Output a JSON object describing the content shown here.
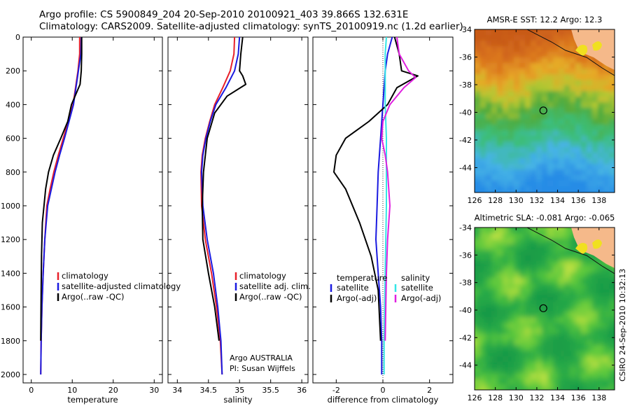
{
  "header": {
    "line1": "Argo profile: CS 5900849_204 20-Sep-2010 20100921_403 39.866S 132.631E",
    "line2": "Climatology: CARS2009. Satellite-adjusted climatology: synTS_20100919.nc (1.2d earlier)"
  },
  "footer_text": "CSIRO 24-Sep-2010 10:32:13",
  "colors": {
    "red": "#e8202a",
    "blue": "#1a1ae0",
    "black": "#000000",
    "cyan": "#33e6e6",
    "magenta": "#e020e0"
  },
  "chart_data": [
    {
      "type": "line",
      "panel": "temperature",
      "xlabel": "temperature",
      "ylabel": "",
      "xlim": [
        -2,
        32
      ],
      "ylim": [
        2050,
        0
      ],
      "xticks": [
        0,
        10,
        20,
        30
      ],
      "yticks": [
        0,
        200,
        400,
        600,
        800,
        1000,
        1200,
        1400,
        1600,
        1800,
        2000
      ],
      "legend": {
        "placement": "lower-right",
        "entries": [
          {
            "label": "climatology",
            "color": "#e8202a"
          },
          {
            "label": "satellite-adjusted climatology",
            "color": "#1a1ae0"
          },
          {
            "label": "Argo(..raw -QC)",
            "color": "#000000"
          }
        ]
      },
      "series": [
        {
          "name": "climatology",
          "color": "#e8202a",
          "x": [
            11.8,
            11.8,
            11.4,
            10.2,
            9.0,
            7.8,
            6.6,
            5.5,
            4.6,
            3.8,
            3.3,
            2.9,
            2.6,
            2.4,
            2.3
          ],
          "y": [
            0,
            100,
            200,
            400,
            500,
            600,
            700,
            800,
            900,
            1000,
            1200,
            1400,
            1600,
            1800,
            2000
          ]
        },
        {
          "name": "satellite-adjusted climatology",
          "color": "#1a1ae0",
          "x": [
            12.2,
            12.1,
            11.5,
            10.3,
            9.2,
            8.1,
            6.9,
            5.8,
            4.9,
            4.0,
            3.3,
            2.9,
            2.6,
            2.4,
            2.3
          ],
          "y": [
            0,
            100,
            200,
            400,
            500,
            600,
            700,
            800,
            900,
            1000,
            1200,
            1400,
            1600,
            1800,
            2000
          ]
        },
        {
          "name": "Argo(..raw -QC)",
          "color": "#000000",
          "x": [
            12.3,
            12.3,
            12.2,
            11.9,
            9.8,
            8.9,
            7.2,
            5.4,
            4.2,
            3.5,
            2.7,
            2.5,
            2.4,
            2.3
          ],
          "y": [
            0,
            100,
            200,
            280,
            400,
            500,
            600,
            700,
            800,
            900,
            1100,
            1300,
            1500,
            1800
          ]
        }
      ]
    },
    {
      "type": "line",
      "panel": "salinity",
      "xlabel": "salinity",
      "ylabel": "",
      "xlim": [
        33.85,
        36.1
      ],
      "ylim": [
        2050,
        0
      ],
      "xticks": [
        34,
        34.5,
        35,
        35.5,
        36
      ],
      "yticks": [
        0,
        200,
        400,
        600,
        800,
        1000,
        1200,
        1400,
        1600,
        1800,
        2000
      ],
      "legend": {
        "placement": "lower-right",
        "entries": [
          {
            "label": "climatology",
            "color": "#e8202a"
          },
          {
            "label": "satellite adj. clim.",
            "color": "#1a1ae0"
          },
          {
            "label": "Argo(..raw -QC)",
            "color": "#000000"
          }
        ]
      },
      "annotation": [
        "Argo AUSTRALIA",
        "PI: Susan Wijffels"
      ],
      "series": [
        {
          "name": "climatology",
          "color": "#e8202a",
          "x": [
            34.92,
            34.91,
            34.85,
            34.73,
            34.6,
            34.52,
            34.45,
            34.4,
            34.38,
            34.39,
            34.45,
            34.55,
            34.63,
            34.69,
            34.72
          ],
          "y": [
            0,
            100,
            200,
            300,
            400,
            500,
            600,
            700,
            800,
            1000,
            1200,
            1400,
            1600,
            1800,
            2000
          ]
        },
        {
          "name": "satellite adj. clim.",
          "color": "#1a1ae0",
          "x": [
            35.0,
            34.98,
            34.92,
            34.78,
            34.62,
            34.53,
            34.46,
            34.41,
            34.39,
            34.41,
            34.48,
            34.58,
            34.65,
            34.7,
            34.72
          ],
          "y": [
            0,
            100,
            200,
            300,
            400,
            500,
            600,
            700,
            800,
            1000,
            1200,
            1400,
            1600,
            1800,
            2000
          ]
        },
        {
          "name": "Argo(..raw -QC)",
          "color": "#000000",
          "x": [
            35.05,
            35.02,
            35.0,
            35.05,
            35.1,
            34.8,
            34.6,
            34.48,
            34.42,
            34.4,
            34.41,
            34.5,
            34.6,
            34.67
          ],
          "y": [
            0,
            100,
            200,
            230,
            280,
            350,
            450,
            600,
            800,
            1000,
            1200,
            1400,
            1600,
            1800
          ]
        }
      ]
    },
    {
      "type": "line",
      "panel": "difference",
      "xlabel": "difference from climatology",
      "ylabel": "",
      "xlim": [
        -3.0,
        3.0
      ],
      "ylim": [
        2050,
        0
      ],
      "xticks": [
        -2,
        0,
        2
      ],
      "yticks": [
        0,
        200,
        400,
        600,
        800,
        1000,
        1200,
        1400,
        1600,
        1800,
        2000
      ],
      "legend": {
        "placement": "lower-right",
        "columns": [
          {
            "heading": "temperature",
            "entries": [
              {
                "label": "satellite",
                "color": "#1a1ae0"
              },
              {
                "label": "Argo(-adj)",
                "color": "#000000"
              }
            ]
          },
          {
            "heading": "salinity",
            "entries": [
              {
                "label": "satellite",
                "color": "#33e6e6"
              },
              {
                "label": "Argo(-adj)",
                "color": "#e020e0"
              }
            ]
          }
        ]
      },
      "series": [
        {
          "name": "temperature satellite",
          "color": "#1a1ae0",
          "x": [
            0.4,
            0.2,
            0.1,
            0.0,
            -0.1,
            -0.2,
            -0.25,
            -0.3,
            -0.2,
            -0.1,
            -0.05,
            -0.05
          ],
          "y": [
            0,
            100,
            200,
            400,
            600,
            800,
            1000,
            1200,
            1400,
            1600,
            1800,
            2000
          ]
        },
        {
          "name": "temperature Argo(-adj)",
          "color": "#000000",
          "x": [
            0.5,
            0.7,
            0.8,
            1.5,
            0.6,
            0.2,
            -0.6,
            -1.6,
            -2.0,
            -2.1,
            -1.6,
            -1.0,
            -0.5,
            -0.2,
            -0.1
          ],
          "y": [
            0,
            100,
            200,
            230,
            300,
            400,
            500,
            600,
            700,
            800,
            900,
            1100,
            1300,
            1500,
            1800
          ]
        },
        {
          "name": "salinity satellite",
          "color": "#33e6e6",
          "x": [
            0.15,
            0.1,
            0.1,
            0.1,
            0.15,
            0.15,
            0.15,
            0.1,
            0.05,
            0.05
          ],
          "y": [
            0,
            100,
            200,
            400,
            600,
            800,
            1000,
            1400,
            1800,
            2000
          ]
        },
        {
          "name": "salinity Argo(-adj)",
          "color": "#e020e0",
          "x": [
            0.6,
            0.7,
            1.1,
            1.4,
            0.9,
            0.3,
            0.0,
            -0.05,
            0.1,
            0.2,
            0.3,
            0.2,
            0.15,
            0.1
          ],
          "y": [
            0,
            100,
            200,
            240,
            300,
            400,
            500,
            600,
            700,
            800,
            1000,
            1200,
            1400,
            1800
          ]
        }
      ]
    },
    {
      "type": "heatmap",
      "panel": "amsr-sst-map",
      "title": "AMSR-E SST: 12.2 Argo: 12.3",
      "xlim": [
        126,
        139.5
      ],
      "ylim": [
        -45.8,
        -34
      ],
      "xticks": [
        126,
        128,
        130,
        132,
        134,
        136,
        138
      ],
      "yticks": [
        -34,
        -36,
        -38,
        -40,
        -42,
        -44
      ],
      "marker": {
        "lon": 132.631,
        "lat": -39.866
      },
      "palette": "warm-to-cold (orange north, green mid, blue south)"
    },
    {
      "type": "heatmap",
      "panel": "altimetric-sla-map",
      "title": "Altimetric SLA: -0.081 Argo: -0.065",
      "xlim": [
        126,
        139.5
      ],
      "ylim": [
        -45.8,
        -34
      ],
      "xticks": [
        126,
        128,
        130,
        132,
        134,
        136,
        138
      ],
      "yticks": [
        -34,
        -36,
        -38,
        -40,
        -42,
        -44
      ],
      "marker": {
        "lon": 132.631,
        "lat": -39.866
      },
      "palette": "green with yellow-green highs"
    }
  ]
}
